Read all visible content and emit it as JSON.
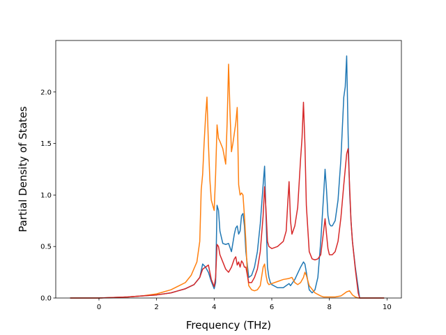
{
  "chart_data": {
    "type": "line",
    "xlabel": "Frequency (THz)",
    "ylabel": "Partial Density of States",
    "xlim": [
      -1.5,
      10.5
    ],
    "ylim": [
      0,
      2.5
    ],
    "xticks": [
      0,
      2,
      4,
      6,
      8,
      10
    ],
    "xtick_labels": [
      "0",
      "2",
      "4",
      "6",
      "8",
      "10"
    ],
    "yticks": [
      0,
      0.5,
      1.0,
      1.5,
      2.0
    ],
    "ytick_labels": [
      "0.0",
      "0.5",
      "1.0",
      "1.5",
      "2.0"
    ],
    "grid": false,
    "legend": false,
    "series": [
      {
        "color": "#1f77b4",
        "x": [
          -1.0,
          0.0,
          0.5,
          1.0,
          1.5,
          2.0,
          2.5,
          3.0,
          3.3,
          3.5,
          3.6,
          3.7,
          3.8,
          3.9,
          4.0,
          4.05,
          4.1,
          4.15,
          4.2,
          4.3,
          4.4,
          4.5,
          4.6,
          4.7,
          4.75,
          4.8,
          4.85,
          4.9,
          4.95,
          5.0,
          5.05,
          5.1,
          5.2,
          5.3,
          5.4,
          5.5,
          5.6,
          5.7,
          5.75,
          5.8,
          5.85,
          5.9,
          5.95,
          6.0,
          6.2,
          6.4,
          6.5,
          6.6,
          6.65,
          6.7,
          6.8,
          6.9,
          7.0,
          7.1,
          7.15,
          7.2,
          7.3,
          7.4,
          7.5,
          7.6,
          7.7,
          7.8,
          7.85,
          7.9,
          7.95,
          8.0,
          8.05,
          8.1,
          8.2,
          8.3,
          8.4,
          8.5,
          8.55,
          8.6,
          8.65,
          8.7,
          8.75,
          8.8,
          8.9,
          9.0,
          9.05,
          9.1,
          9.5,
          9.9
        ],
        "y": [
          0.0,
          0.0,
          0.005,
          0.01,
          0.02,
          0.03,
          0.05,
          0.09,
          0.13,
          0.2,
          0.33,
          0.3,
          0.25,
          0.16,
          0.09,
          0.15,
          0.9,
          0.85,
          0.65,
          0.53,
          0.52,
          0.53,
          0.45,
          0.62,
          0.68,
          0.7,
          0.62,
          0.65,
          0.8,
          0.82,
          0.7,
          0.45,
          0.2,
          0.22,
          0.3,
          0.45,
          0.72,
          1.1,
          1.28,
          0.8,
          0.3,
          0.2,
          0.15,
          0.13,
          0.1,
          0.1,
          0.12,
          0.14,
          0.12,
          0.14,
          0.18,
          0.24,
          0.3,
          0.35,
          0.33,
          0.25,
          0.08,
          0.05,
          0.08,
          0.2,
          0.55,
          1.0,
          1.25,
          1.05,
          0.8,
          0.72,
          0.7,
          0.7,
          0.75,
          0.95,
          1.35,
          1.95,
          2.05,
          2.35,
          1.6,
          1.05,
          0.75,
          0.55,
          0.3,
          0.1,
          0.0,
          0.0,
          0.0,
          0.0
        ]
      },
      {
        "color": "#ff7f0e",
        "x": [
          -1.0,
          0.0,
          0.5,
          1.0,
          1.5,
          2.0,
          2.5,
          3.0,
          3.2,
          3.4,
          3.5,
          3.55,
          3.6,
          3.65,
          3.7,
          3.75,
          3.8,
          3.85,
          3.9,
          4.0,
          4.05,
          4.1,
          4.15,
          4.2,
          4.3,
          4.4,
          4.45,
          4.5,
          4.55,
          4.6,
          4.65,
          4.7,
          4.75,
          4.8,
          4.85,
          4.9,
          4.95,
          5.0,
          5.05,
          5.1,
          5.15,
          5.2,
          5.3,
          5.4,
          5.5,
          5.6,
          5.7,
          5.75,
          5.8,
          5.85,
          5.9,
          6.0,
          6.2,
          6.4,
          6.6,
          6.7,
          6.8,
          6.9,
          7.0,
          7.1,
          7.15,
          7.2,
          7.3,
          7.5,
          7.7,
          7.8,
          7.9,
          8.0,
          8.2,
          8.4,
          8.5,
          8.6,
          8.7,
          8.8,
          8.9,
          9.0,
          9.5,
          9.9
        ],
        "y": [
          0.0,
          0.0,
          0.005,
          0.01,
          0.02,
          0.04,
          0.08,
          0.15,
          0.22,
          0.35,
          0.55,
          1.05,
          1.2,
          1.5,
          1.75,
          1.95,
          1.5,
          1.15,
          0.95,
          0.85,
          1.2,
          1.68,
          1.55,
          1.52,
          1.45,
          1.3,
          1.7,
          2.27,
          1.8,
          1.42,
          1.5,
          1.6,
          1.7,
          1.85,
          1.1,
          1.0,
          1.02,
          1.0,
          0.8,
          0.55,
          0.25,
          0.12,
          0.08,
          0.07,
          0.08,
          0.12,
          0.3,
          0.33,
          0.22,
          0.15,
          0.13,
          0.14,
          0.16,
          0.18,
          0.19,
          0.2,
          0.15,
          0.13,
          0.15,
          0.2,
          0.25,
          0.22,
          0.12,
          0.05,
          0.02,
          0.01,
          0.01,
          0.01,
          0.01,
          0.02,
          0.04,
          0.06,
          0.07,
          0.03,
          0.01,
          0.0,
          0.0,
          0.0
        ]
      },
      {
        "color": "#d62728",
        "x": [
          -1.0,
          0.0,
          0.5,
          1.0,
          1.5,
          2.0,
          2.5,
          3.0,
          3.3,
          3.5,
          3.6,
          3.7,
          3.8,
          3.9,
          4.0,
          4.05,
          4.1,
          4.15,
          4.2,
          4.3,
          4.4,
          4.5,
          4.6,
          4.7,
          4.75,
          4.8,
          4.85,
          4.9,
          4.95,
          5.0,
          5.05,
          5.1,
          5.2,
          5.3,
          5.4,
          5.5,
          5.6,
          5.7,
          5.75,
          5.8,
          5.85,
          5.9,
          6.0,
          6.2,
          6.4,
          6.5,
          6.55,
          6.6,
          6.65,
          6.7,
          6.8,
          6.9,
          7.0,
          7.05,
          7.1,
          7.15,
          7.2,
          7.3,
          7.4,
          7.5,
          7.6,
          7.7,
          7.8,
          7.85,
          7.9,
          7.95,
          8.0,
          8.1,
          8.2,
          8.3,
          8.4,
          8.5,
          8.55,
          8.6,
          8.65,
          8.7,
          8.75,
          8.8,
          8.9,
          9.0,
          9.05,
          9.5,
          9.9
        ],
        "y": [
          0.0,
          0.0,
          0.005,
          0.01,
          0.02,
          0.03,
          0.05,
          0.09,
          0.13,
          0.2,
          0.28,
          0.3,
          0.32,
          0.18,
          0.11,
          0.2,
          0.52,
          0.5,
          0.42,
          0.35,
          0.28,
          0.25,
          0.3,
          0.38,
          0.4,
          0.32,
          0.35,
          0.3,
          0.36,
          0.34,
          0.3,
          0.3,
          0.15,
          0.15,
          0.2,
          0.28,
          0.45,
          0.8,
          1.08,
          0.85,
          0.55,
          0.5,
          0.48,
          0.5,
          0.55,
          0.65,
          0.9,
          1.13,
          0.75,
          0.62,
          0.7,
          0.88,
          1.35,
          1.55,
          1.9,
          1.5,
          0.9,
          0.45,
          0.38,
          0.37,
          0.38,
          0.42,
          0.65,
          0.77,
          0.62,
          0.48,
          0.42,
          0.42,
          0.45,
          0.55,
          0.78,
          1.1,
          1.25,
          1.4,
          1.45,
          1.1,
          0.75,
          0.55,
          0.28,
          0.05,
          0.0,
          0.0,
          0.0
        ]
      }
    ]
  }
}
